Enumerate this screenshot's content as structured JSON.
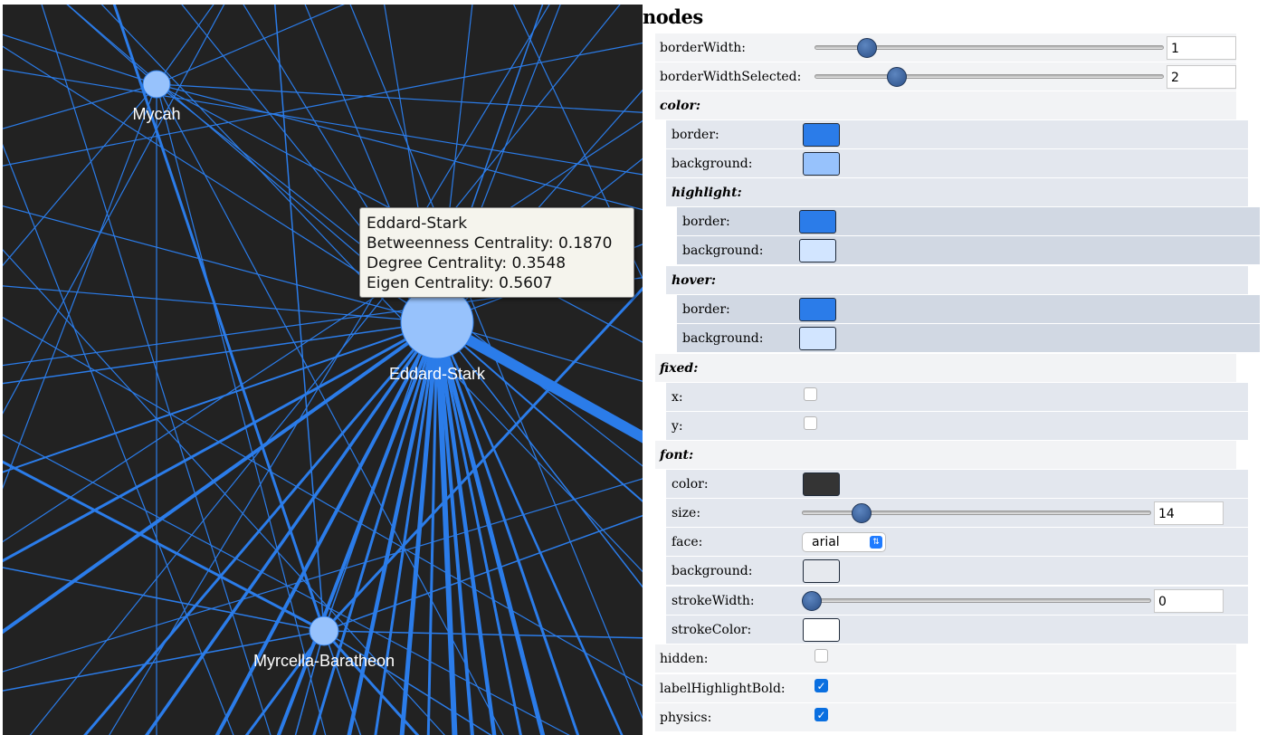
{
  "graph": {
    "nodes": [
      {
        "label": "Mycah"
      },
      {
        "label": "Eddard-Stark"
      },
      {
        "label": "Myrcella-Baratheon"
      }
    ],
    "colors": {
      "background": "#222222",
      "edge": "#2b7ce9",
      "node": "#97c2fc"
    }
  },
  "tooltip": {
    "node": "Eddard-Stark",
    "betweenness": "Betweenness Centrality: 0.1870",
    "degree": "Degree Centrality: 0.3548",
    "eigen": "Eigen Centrality: 0.5607"
  },
  "config": {
    "section_title": "nodes",
    "borderWidth": {
      "label": "borderWidth:",
      "value": "1",
      "slider_fraction": 0.13
    },
    "borderWidthSelected": {
      "label": "borderWidthSelected:",
      "value": "2",
      "slider_fraction": 0.22
    },
    "color": {
      "label": "color:",
      "border": {
        "label": "border:",
        "color": "#2b7ce9"
      },
      "background": {
        "label": "background:",
        "color": "#97c2fc"
      },
      "highlight": {
        "label": "highlight:",
        "border": {
          "label": "border:",
          "color": "#2b7ce9"
        },
        "background": {
          "label": "background:",
          "color": "#d2e5ff"
        }
      },
      "hover": {
        "label": "hover:",
        "border": {
          "label": "border:",
          "color": "#2b7ce9"
        },
        "background": {
          "label": "background:",
          "color": "#d2e5ff"
        }
      }
    },
    "fixed": {
      "label": "fixed:",
      "x": {
        "label": "x:",
        "checked": false
      },
      "y": {
        "label": "y:",
        "checked": false
      }
    },
    "font": {
      "label": "font:",
      "color": {
        "label": "color:",
        "color": "#343434"
      },
      "size": {
        "label": "size:",
        "value": "14",
        "slider_fraction": 0.15
      },
      "face": {
        "label": "face:",
        "value": "arial"
      },
      "background": {
        "label": "background:",
        "color": "#e6e9ee"
      },
      "strokeWidth": {
        "label": "strokeWidth:",
        "value": "0",
        "slider_fraction": 0.0
      },
      "strokeColor": {
        "label": "strokeColor:",
        "color": "#ffffff"
      }
    },
    "hidden": {
      "label": "hidden:",
      "checked": false
    },
    "labelHighlightBold": {
      "label": "labelHighlightBold:",
      "checked": true
    },
    "physics": {
      "label": "physics:",
      "checked": true
    }
  }
}
